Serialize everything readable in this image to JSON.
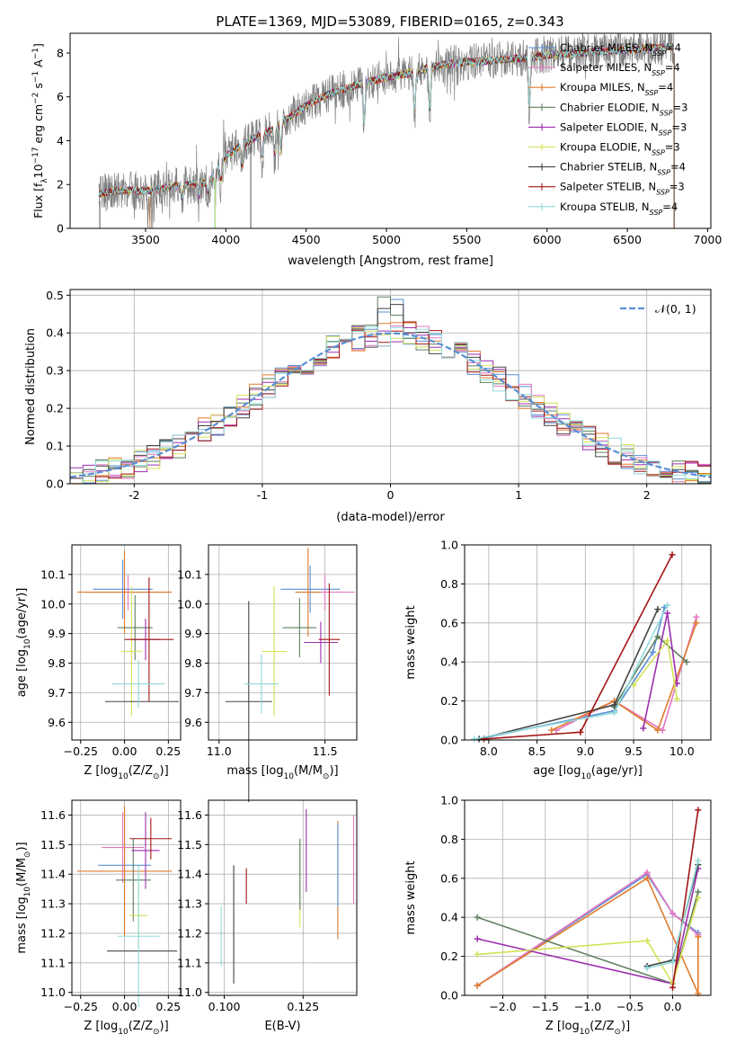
{
  "figure_title": "PLATE=1369, MJD=53089, FIBERID=0165, z=0.343",
  "colors": {
    "Chabrier MILES": "#5a8fd4",
    "Salpeter MILES": "#e377c2",
    "Kroupa MILES": "#e07b2c",
    "Chabrier ELODIE": "#5f7f5f",
    "Salpeter ELODIE": "#9b2fae",
    "Kroupa ELODIE": "#d4e157",
    "Chabrier STELIB": "#444444",
    "Salpeter STELIB": "#a31515",
    "Kroupa STELIB": "#8fd9d9",
    "normal": "#5a8fd4",
    "grid": "#b0b0b0"
  },
  "chart_data": [
    {
      "id": "spectrum",
      "type": "line",
      "title": "PLATE=1369, MJD=53089, FIBERID=0165, z=0.343",
      "xlabel": "wavelength [Angstrom, rest frame]",
      "ylabel": "Flux [f_λ 10^-17 erg cm^-2 s^-1 A^-1]",
      "xlim": [
        3030,
        7020
      ],
      "ylim": [
        0,
        8.9
      ],
      "xticks": [
        3500,
        4000,
        4500,
        5000,
        5500,
        6000,
        6500,
        7000
      ],
      "yticks": [
        0,
        2,
        4,
        6,
        8
      ],
      "grid": false,
      "legend_position": "top-right",
      "legend": [
        {
          "label": "Chabrier MILES, N_SSP=4",
          "main": "Chabrier MILES, N",
          "sub": "SSP",
          "tail": "=4"
        },
        {
          "label": "Salpeter MILES, N_SSP=4",
          "main": "Salpeter MILES, N",
          "sub": "SSP",
          "tail": "=4"
        },
        {
          "label": "Kroupa MILES, N_SSP=4",
          "main": "Kroupa MILES, N",
          "sub": "SSP",
          "tail": "=4"
        },
        {
          "label": "Chabrier ELODIE, N_SSP=3",
          "main": "Chabrier ELODIE, N",
          "sub": "SSP",
          "tail": "=3"
        },
        {
          "label": "Salpeter ELODIE, N_SSP=3",
          "main": "Salpeter ELODIE, N",
          "sub": "SSP",
          "tail": "=3"
        },
        {
          "label": "Kroupa ELODIE, N_SSP=3",
          "main": "Kroupa ELODIE, N",
          "sub": "SSP",
          "tail": "=3"
        },
        {
          "label": "Chabrier STELIB, N_SSP=4",
          "main": "Chabrier STELIB, N",
          "sub": "SSP",
          "tail": "=4"
        },
        {
          "label": "Salpeter STELIB, N_SSP=3",
          "main": "Salpeter STELIB, N",
          "sub": "SSP",
          "tail": "=3"
        },
        {
          "label": "Kroupa STELIB, N_SSP=4",
          "main": "Kroupa STELIB, N",
          "sub": "SSP",
          "tail": "=4"
        }
      ],
      "continuum": {
        "wavelength": [
          3210,
          3300,
          3400,
          3500,
          3600,
          3700,
          3800,
          3900,
          4000,
          4100,
          4200,
          4300,
          4400,
          4500,
          4600,
          4700,
          4800,
          4900,
          5000,
          5100,
          5200,
          5300,
          5400,
          5500,
          5600,
          5700,
          5800,
          5900,
          6000,
          6100,
          6200,
          6300,
          6400,
          6500,
          6600,
          6700,
          6800
        ],
        "flux": [
          1.55,
          1.7,
          1.75,
          1.7,
          1.8,
          1.95,
          2.0,
          2.15,
          3.3,
          3.8,
          4.2,
          4.6,
          5.1,
          5.6,
          6.0,
          6.3,
          6.5,
          6.7,
          6.9,
          7.0,
          7.2,
          7.4,
          7.5,
          7.6,
          7.6,
          7.7,
          7.75,
          7.8,
          7.9,
          7.95,
          8.0,
          8.05,
          8.1,
          8.15,
          8.2,
          8.25,
          8.3
        ]
      }
    },
    {
      "id": "residuals",
      "type": "line",
      "xlabel": "(data-model)/error",
      "ylabel": "Normed distribution",
      "xlim": [
        -2.5,
        2.5
      ],
      "ylim": [
        0,
        0.515
      ],
      "xticks": [
        -2,
        -1,
        0,
        1,
        2
      ],
      "yticks": [
        0.0,
        0.1,
        0.2,
        0.3,
        0.4,
        0.5
      ],
      "grid": true,
      "legend_position": "top-right",
      "legend": [
        {
          "label": "𝒩(0, 1)"
        }
      ],
      "bin_width": 0.1
    },
    {
      "id": "age_vs_Z",
      "type": "scatter",
      "xlabel": "Z [log10(Z/Z⊙)]",
      "ylabel": "age [log10(age/yr)]",
      "xlim": [
        -0.3,
        0.32
      ],
      "ylim": [
        9.54,
        10.2
      ],
      "xticks": [
        -0.25,
        0.0,
        0.25
      ],
      "yticks": [
        9.6,
        9.7,
        9.8,
        9.9,
        10.0,
        10.1
      ],
      "grid": true,
      "errorbars": [
        {
          "series": "Chabrier MILES",
          "x": -0.01,
          "xerr": 0.17,
          "y": 10.05,
          "yerr": 0.1
        },
        {
          "series": "Salpeter MILES",
          "x": 0.02,
          "xerr": 0.24,
          "y": 10.04,
          "yerr": 0.06
        },
        {
          "series": "Kroupa MILES",
          "x": 0.0,
          "xerr": 0.27,
          "y": 10.04,
          "yerr": 0.14
        },
        {
          "series": "Chabrier ELODIE",
          "x": 0.06,
          "xerr": 0.1,
          "y": 9.92,
          "yerr": 0.11
        },
        {
          "series": "Salpeter ELODIE",
          "x": 0.12,
          "xerr": 0.08,
          "y": 9.88,
          "yerr": 0.07
        },
        {
          "series": "Kroupa ELODIE",
          "x": 0.04,
          "xerr": 0.06,
          "y": 9.84,
          "yerr": 0.22
        },
        {
          "series": "Chabrier STELIB",
          "x": 0.1,
          "xerr": 0.21,
          "y": 9.67,
          "yerr": 0.0
        },
        {
          "series": "Salpeter STELIB",
          "x": 0.14,
          "xerr": 0.14,
          "y": 9.88,
          "yerr": 0.21
        },
        {
          "series": "Kroupa STELIB",
          "x": 0.08,
          "xerr": 0.15,
          "y": 9.73,
          "yerr": 0.08
        }
      ]
    },
    {
      "id": "age_vs_mass",
      "type": "scatter",
      "xlabel": "mass [log10(M/M⊙)]",
      "ylabel": "",
      "xlim": [
        10.95,
        11.65
      ],
      "ylim": [
        9.54,
        10.2
      ],
      "xticks": [
        11.0,
        11.5
      ],
      "yticks": [
        9.6,
        9.7,
        9.8,
        9.9,
        10.0,
        10.1
      ],
      "grid": true,
      "errorbars": [
        {
          "series": "Chabrier MILES",
          "x": 11.43,
          "xerr": 0.14,
          "y": 10.05,
          "yerr": 0.08
        },
        {
          "series": "Salpeter MILES",
          "x": 11.5,
          "xerr": 0.14,
          "y": 10.04,
          "yerr": 0.06
        },
        {
          "series": "Kroupa MILES",
          "x": 11.42,
          "xerr": 0.06,
          "y": 10.04,
          "yerr": 0.15
        },
        {
          "series": "Chabrier ELODIE",
          "x": 11.38,
          "xerr": 0.08,
          "y": 9.92,
          "yerr": 0.1
        },
        {
          "series": "Salpeter ELODIE",
          "x": 11.48,
          "xerr": 0.08,
          "y": 9.87,
          "yerr": 0.07
        },
        {
          "series": "Kroupa ELODIE",
          "x": 11.26,
          "xerr": 0.06,
          "y": 9.84,
          "yerr": 0.22
        },
        {
          "series": "Chabrier STELIB",
          "x": 11.14,
          "xerr": 0.11,
          "y": 9.67,
          "yerr": 0.34
        },
        {
          "series": "Salpeter STELIB",
          "x": 11.52,
          "xerr": 0.05,
          "y": 9.88,
          "yerr": 0.19
        },
        {
          "series": "Kroupa STELIB",
          "x": 11.2,
          "xerr": 0.08,
          "y": 9.73,
          "yerr": 0.1
        }
      ]
    },
    {
      "id": "weight_vs_age",
      "type": "line",
      "xlabel": "age [log10(age/yr)]",
      "ylabel": "mass weight",
      "xlim": [
        7.75,
        10.3
      ],
      "ylim": [
        0,
        1.0
      ],
      "xticks": [
        8.0,
        8.5,
        9.0,
        9.5,
        10.0
      ],
      "yticks": [
        0.0,
        0.2,
        0.4,
        0.6,
        0.8,
        1.0
      ],
      "grid": true,
      "series": [
        {
          "name": "Chabrier MILES",
          "x": [
            7.9,
            9.3,
            9.7,
            9.82
          ],
          "y": [
            0.005,
            0.15,
            0.45,
            0.68
          ]
        },
        {
          "name": "Salpeter MILES",
          "x": [
            8.7,
            9.3,
            9.8,
            10.15
          ],
          "y": [
            0.05,
            0.2,
            0.05,
            0.63
          ]
        },
        {
          "name": "Kroupa MILES",
          "x": [
            8.65,
            9.3,
            9.75,
            10.15
          ],
          "y": [
            0.05,
            0.2,
            0.05,
            0.6
          ]
        },
        {
          "name": "Chabrier ELODIE",
          "x": [
            9.3,
            9.75,
            10.05
          ],
          "y": [
            0.17,
            0.53,
            0.4
          ]
        },
        {
          "name": "Salpeter ELODIE",
          "x": [
            9.6,
            9.85,
            9.95
          ],
          "y": [
            0.06,
            0.65,
            0.29
          ]
        },
        {
          "name": "Kroupa ELODIE",
          "x": [
            9.5,
            9.85,
            9.95
          ],
          "y": [
            0.28,
            0.51,
            0.21
          ]
        },
        {
          "name": "Chabrier STELIB",
          "x": [
            7.9,
            9.3,
            9.75
          ],
          "y": [
            0.005,
            0.18,
            0.67
          ]
        },
        {
          "name": "Salpeter STELIB",
          "x": [
            7.95,
            8.95,
            9.9
          ],
          "y": [
            0.005,
            0.04,
            0.95
          ]
        },
        {
          "name": "Kroupa STELIB",
          "x": [
            7.85,
            9.3,
            9.85
          ],
          "y": [
            0.005,
            0.14,
            0.69
          ]
        }
      ]
    },
    {
      "id": "mass_vs_Z",
      "type": "scatter",
      "xlabel": "Z [log10(Z/Z⊙)]",
      "ylabel": "mass [log10(M/M⊙)]",
      "xlim": [
        -0.3,
        0.32
      ],
      "ylim": [
        10.99,
        11.65
      ],
      "xticks": [
        -0.25,
        0.0,
        0.25
      ],
      "yticks": [
        11.0,
        11.1,
        11.2,
        11.3,
        11.4,
        11.5,
        11.6
      ],
      "grid": true,
      "errorbars": [
        {
          "series": "Chabrier MILES",
          "x": 0.0,
          "xerr": 0.15,
          "y": 11.43,
          "yerr": 0.2
        },
        {
          "series": "Salpeter MILES",
          "x": -0.01,
          "xerr": 0.12,
          "y": 11.49,
          "yerr": 0.12
        },
        {
          "series": "Kroupa MILES",
          "x": 0.0,
          "xerr": 0.27,
          "y": 11.41,
          "yerr": 0.22
        },
        {
          "series": "Chabrier ELODIE",
          "x": 0.05,
          "xerr": 0.1,
          "y": 11.38,
          "yerr": 0.14
        },
        {
          "series": "Salpeter ELODIE",
          "x": 0.12,
          "xerr": 0.08,
          "y": 11.48,
          "yerr": 0.13
        },
        {
          "series": "Kroupa ELODIE",
          "x": 0.08,
          "xerr": 0.05,
          "y": 11.26,
          "yerr": 0.1
        },
        {
          "series": "Chabrier STELIB",
          "x": 0.1,
          "xerr": 0.2,
          "y": 11.14,
          "yerr": 0.0
        },
        {
          "series": "Salpeter STELIB",
          "x": 0.15,
          "xerr": 0.12,
          "y": 11.52,
          "yerr": 0.07
        },
        {
          "series": "Kroupa STELIB",
          "x": 0.08,
          "xerr": 0.12,
          "y": 11.19,
          "yerr": 0.24
        }
      ]
    },
    {
      "id": "mass_vs_ebv",
      "type": "scatter",
      "xlabel": "E(B-V)",
      "ylabel": "",
      "xlim": [
        0.095,
        0.142
      ],
      "ylim": [
        10.99,
        11.65
      ],
      "xticks": [
        0.1,
        0.125
      ],
      "xtick_labels": [
        "0.100",
        "0.125"
      ],
      "yticks": [
        11.0,
        11.1,
        11.2,
        11.3,
        11.4,
        11.5,
        11.6
      ],
      "grid": true,
      "errorbars": [
        {
          "series": "Kroupa STELIB",
          "x": 0.099,
          "y": 11.19,
          "yerr": 0.1
        },
        {
          "series": "Chabrier STELIB",
          "x": 0.103,
          "y": 11.23,
          "yerr": 0.2
        },
        {
          "series": "Salpeter STELIB",
          "x": 0.107,
          "y": 11.36,
          "yerr": 0.06
        },
        {
          "series": "Kroupa ELODIE",
          "x": 0.124,
          "y": 11.37,
          "yerr": 0.15
        },
        {
          "series": "Chabrier ELODIE",
          "x": 0.124,
          "y": 11.4,
          "yerr": 0.12
        },
        {
          "series": "Salpeter ELODIE",
          "x": 0.126,
          "y": 11.48,
          "yerr": 0.14
        },
        {
          "series": "Kroupa MILES",
          "x": 0.136,
          "y": 11.38,
          "yerr": 0.2
        },
        {
          "series": "Chabrier MILES",
          "x": 0.136,
          "y": 11.43,
          "yerr": 0.14
        },
        {
          "series": "Salpeter MILES",
          "x": 0.141,
          "y": 11.45,
          "yerr": 0.15
        }
      ]
    },
    {
      "id": "weight_vs_Z",
      "type": "line",
      "xlabel": "Z [log10(Z/Z⊙)]",
      "ylabel": "mass weight",
      "xlim": [
        -2.45,
        0.45
      ],
      "ylim": [
        0,
        1.0
      ],
      "xticks": [
        -2.0,
        -1.5,
        -1.0,
        -0.5,
        0.0
      ],
      "yticks": [
        0.0,
        0.2,
        0.4,
        0.6,
        0.8,
        1.0
      ],
      "grid": true,
      "series": [
        {
          "name": "Chabrier MILES",
          "x": [
            -2.3,
            -0.3,
            0.0,
            0.3
          ],
          "y": [
            0.05,
            0.62,
            0.42,
            0.32
          ]
        },
        {
          "name": "Salpeter MILES",
          "x": [
            -2.3,
            -0.3,
            0.0,
            0.3
          ],
          "y": [
            0.05,
            0.63,
            0.42,
            0.31
          ]
        },
        {
          "name": "Kroupa MILES",
          "x": [
            -2.3,
            -0.3,
            0.3,
            0.3
          ],
          "y": [
            0.05,
            0.6,
            0.01,
            0.3
          ]
        },
        {
          "name": "Chabrier ELODIE",
          "x": [
            -2.3,
            0.0,
            0.3
          ],
          "y": [
            0.4,
            0.06,
            0.53
          ]
        },
        {
          "name": "Salpeter ELODIE",
          "x": [
            -2.3,
            0.0,
            0.3
          ],
          "y": [
            0.29,
            0.06,
            0.65
          ]
        },
        {
          "name": "Kroupa ELODIE",
          "x": [
            -2.3,
            -0.3,
            0.0,
            0.3
          ],
          "y": [
            0.21,
            0.28,
            0.06,
            0.5
          ]
        },
        {
          "name": "Chabrier STELIB",
          "x": [
            -0.3,
            0.0,
            0.3
          ],
          "y": [
            0.15,
            0.18,
            0.67
          ]
        },
        {
          "name": "Salpeter STELIB",
          "x": [
            0.0,
            0.3
          ],
          "y": [
            0.04,
            0.95
          ]
        },
        {
          "name": "Kroupa STELIB",
          "x": [
            -0.3,
            0.0,
            0.3
          ],
          "y": [
            0.14,
            0.17,
            0.69
          ]
        }
      ]
    }
  ]
}
